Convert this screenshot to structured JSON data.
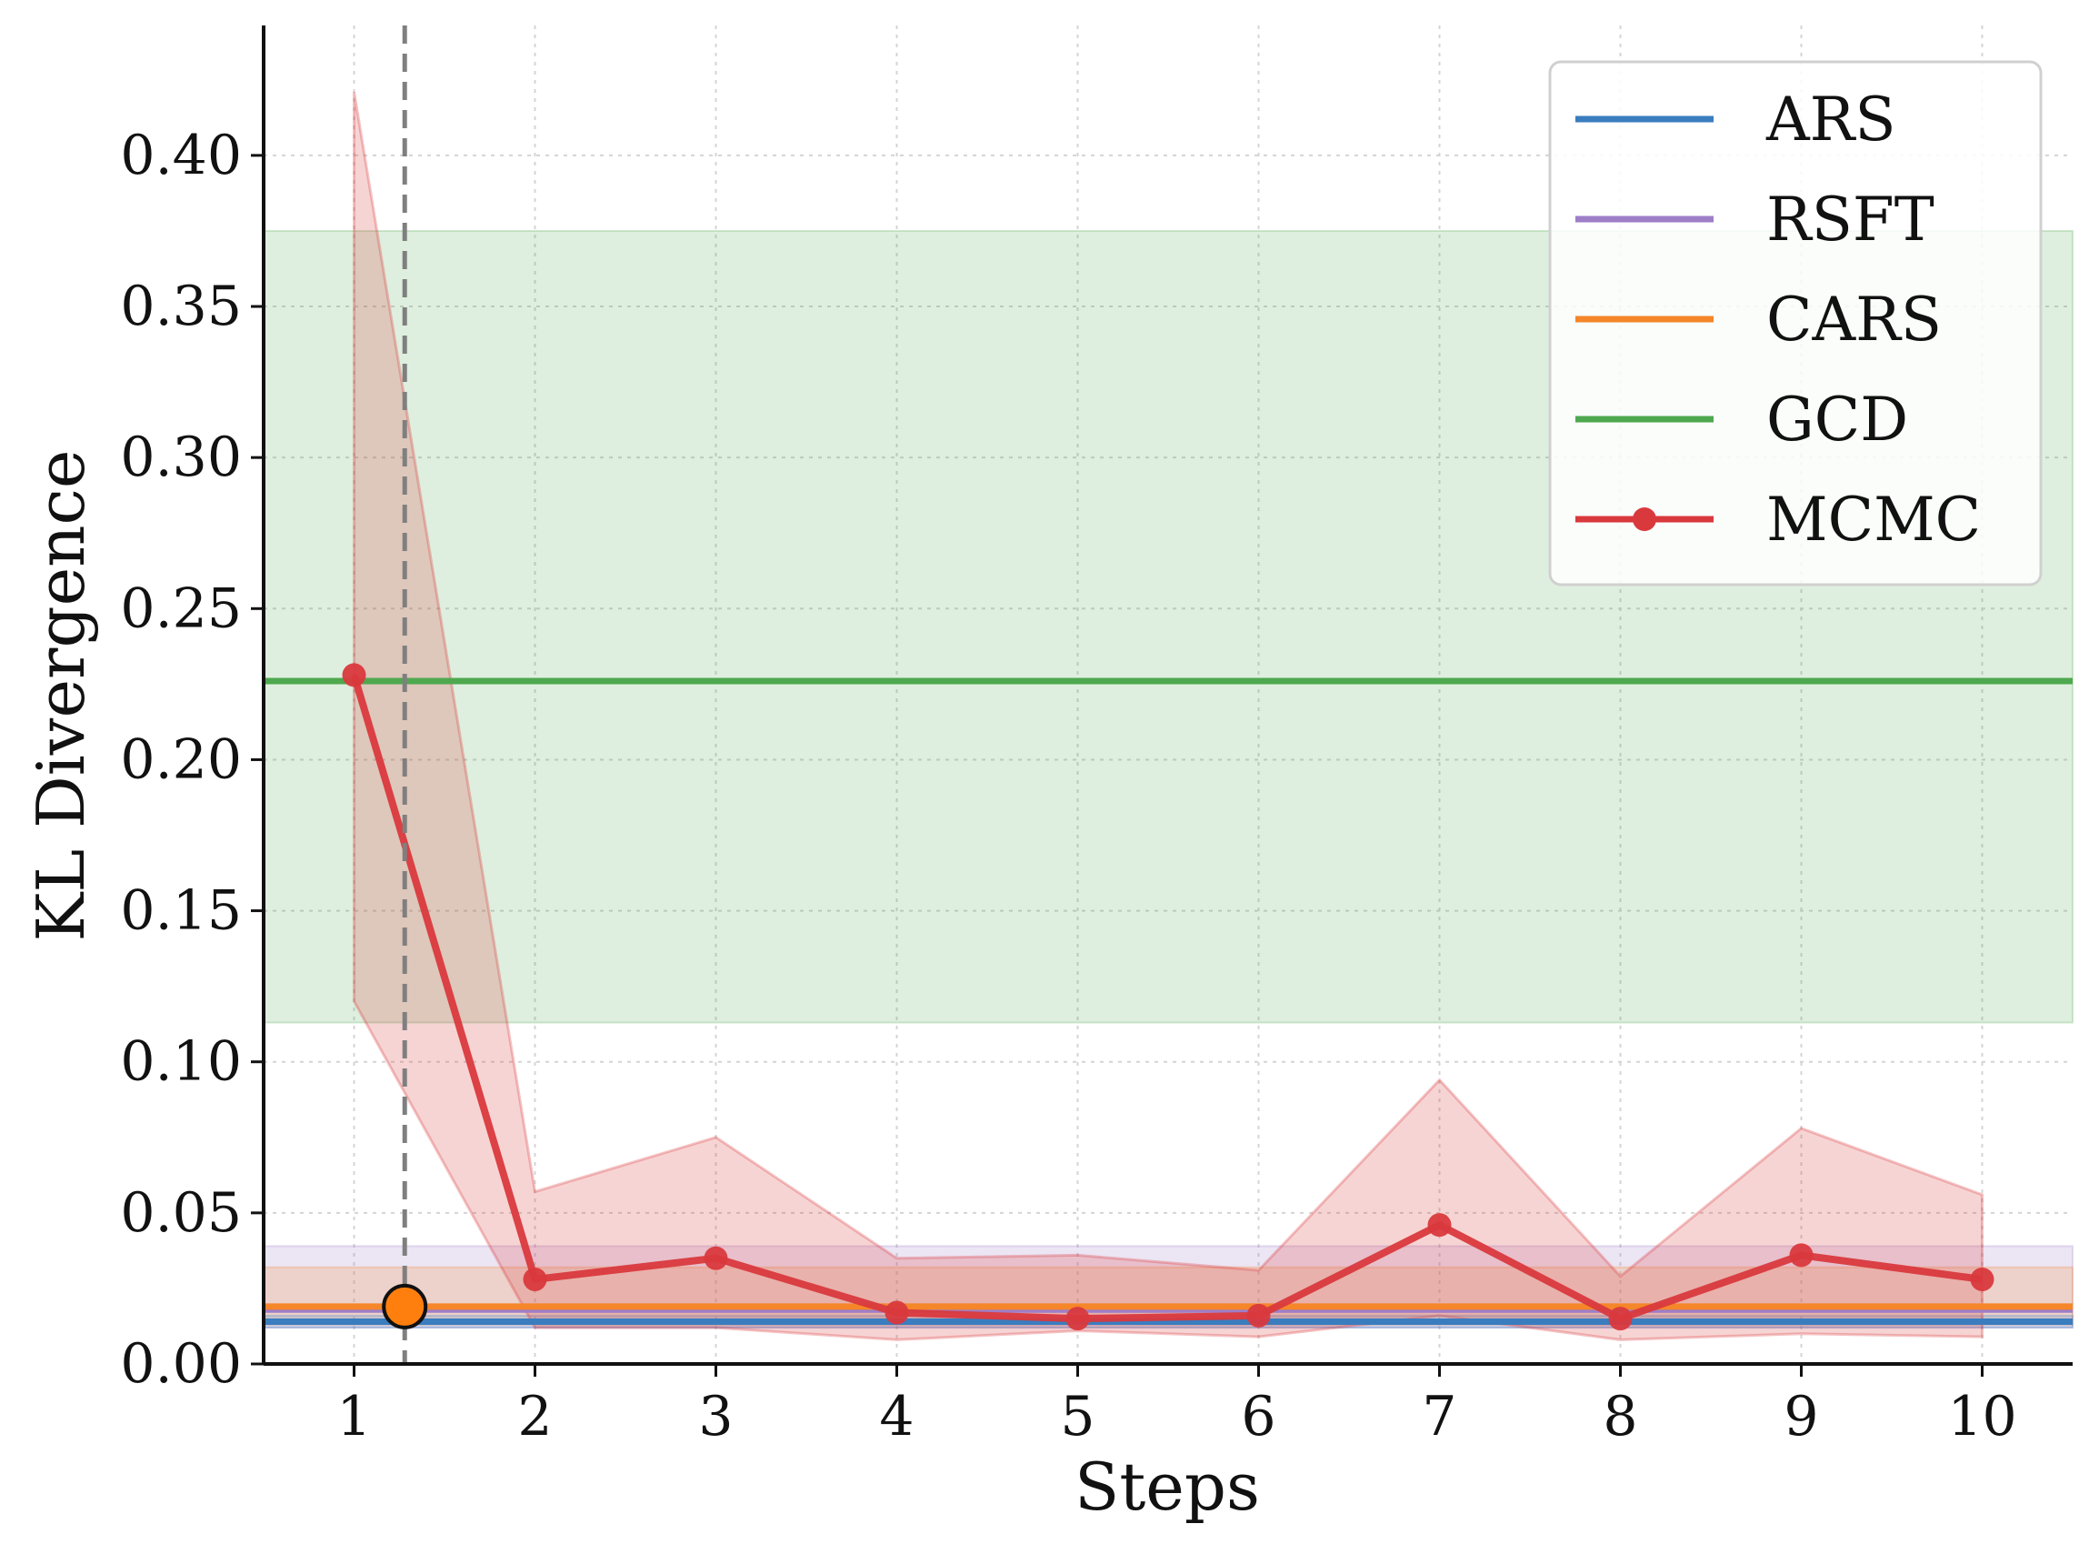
{
  "chart_data": {
    "type": "line",
    "xlabel": "Steps",
    "ylabel": "KL Divergence",
    "xlim": [
      0.5,
      10.5
    ],
    "ylim": [
      0,
      0.443
    ],
    "x_ticks": [
      1,
      2,
      3,
      4,
      5,
      6,
      7,
      8,
      9,
      10
    ],
    "y_ticks": [
      0.0,
      0.05,
      0.1,
      0.15,
      0.2,
      0.25,
      0.3,
      0.35,
      0.4
    ],
    "y_tick_labels": [
      "0.00",
      "0.05",
      "0.10",
      "0.15",
      "0.20",
      "0.25",
      "0.30",
      "0.35",
      "0.40"
    ],
    "grid": true,
    "legend_position": "top-right",
    "baselines": [
      {
        "name": "ARS",
        "color": "#3a7dbf",
        "value": 0.014,
        "band": [
          0.012,
          0.016
        ]
      },
      {
        "name": "RSFT",
        "color": "#9e7ec8",
        "value": 0.018,
        "band": [
          0.012,
          0.039
        ]
      },
      {
        "name": "CARS",
        "color": "#f5862a",
        "value": 0.019,
        "band": [
          0.013,
          0.032
        ]
      },
      {
        "name": "GCD",
        "color": "#4fa84f",
        "value": 0.226,
        "band": [
          0.113,
          0.375
        ]
      }
    ],
    "series": [
      {
        "name": "MCMC",
        "color": "#d9393d",
        "x": [
          1,
          2,
          3,
          4,
          5,
          6,
          7,
          8,
          9,
          10
        ],
        "values": [
          0.228,
          0.028,
          0.035,
          0.017,
          0.015,
          0.016,
          0.046,
          0.015,
          0.036,
          0.028
        ],
        "lower": [
          0.12,
          0.012,
          0.012,
          0.008,
          0.011,
          0.009,
          0.016,
          0.008,
          0.01,
          0.009
        ],
        "upper": [
          0.421,
          0.057,
          0.075,
          0.035,
          0.036,
          0.031,
          0.094,
          0.029,
          0.078,
          0.056
        ]
      }
    ],
    "marker": {
      "x": 1.28,
      "y": 0.019,
      "color": "#ff7f0e"
    },
    "vline_x": 1.28
  }
}
